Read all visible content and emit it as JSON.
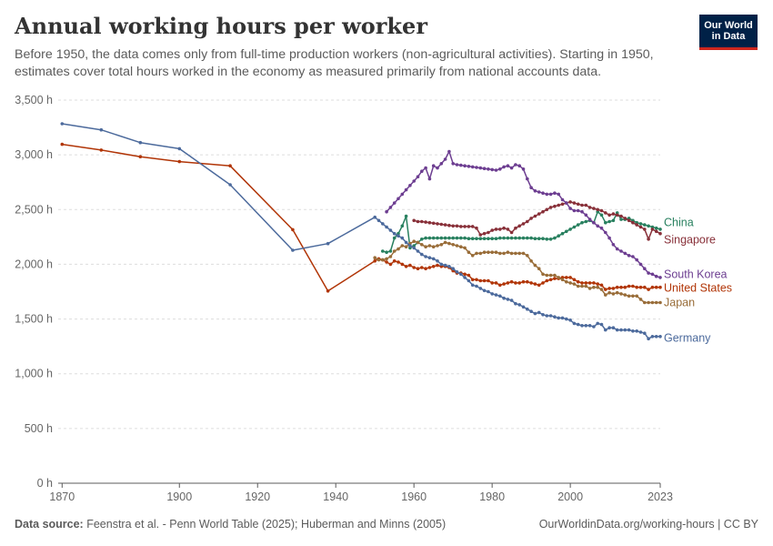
{
  "header": {
    "title": "Annual working hours per worker",
    "subtitle": "Before 1950, the data comes only from full-time production workers (non-agricultural activities). Starting in 1950, estimates cover total hours worked in the economy as measured primarily from national accounts data."
  },
  "logo": {
    "line1": "Our World",
    "line2": "in Data"
  },
  "footer": {
    "source_label": "Data source:",
    "source_text": "Feenstra et al. - Penn World Table (2025); Huberman and Minns (2005)",
    "url_license": "OurWorldinData.org/working-hours | CC BY"
  },
  "colors": {
    "grid": "#dddddd",
    "axis": "#5b5b5b",
    "tick_text": "#666666"
  },
  "chart_data": {
    "type": "line",
    "title": "Annual working hours per worker",
    "xlabel": "",
    "ylabel": "",
    "xlim": [
      1869,
      2023
    ],
    "ylim": [
      0,
      3500
    ],
    "x_ticks": [
      1870,
      1900,
      1920,
      1940,
      1960,
      1980,
      2000,
      2023
    ],
    "y_ticks": [
      0,
      500,
      1000,
      1500,
      2000,
      2500,
      3000,
      3500
    ],
    "y_tick_labels": [
      "0 h",
      "500 h",
      "1,000 h",
      "1,500 h",
      "2,000 h",
      "2,500 h",
      "3,000 h",
      "3,500 h"
    ],
    "grid": "horizontal dashed",
    "legend": "labels at right end of lines",
    "series": [
      {
        "name": "China",
        "color": "#28805f",
        "x": [
          1952,
          1953,
          1954,
          1955,
          1956,
          1957,
          1958,
          1959,
          1960,
          1961,
          1962,
          1963,
          1964,
          1965,
          1966,
          1967,
          1968,
          1969,
          1970,
          1971,
          1972,
          1973,
          1974,
          1975,
          1976,
          1977,
          1978,
          1979,
          1980,
          1981,
          1982,
          1983,
          1984,
          1985,
          1986,
          1987,
          1988,
          1989,
          1990,
          1991,
          1992,
          1993,
          1994,
          1995,
          1996,
          1997,
          1998,
          1999,
          2000,
          2001,
          2002,
          2003,
          2004,
          2005,
          2006,
          2007,
          2008,
          2009,
          2010,
          2011,
          2012,
          2013,
          2014,
          2015,
          2016,
          2017,
          2018,
          2019,
          2020,
          2021,
          2022,
          2023
        ],
        "y": [
          2120,
          2110,
          2120,
          2240,
          2280,
          2350,
          2440,
          2150,
          2170,
          2200,
          2230,
          2240,
          2240,
          2240,
          2240,
          2240,
          2240,
          2240,
          2240,
          2240,
          2240,
          2240,
          2235,
          2235,
          2235,
          2235,
          2235,
          2235,
          2235,
          2235,
          2240,
          2240,
          2240,
          2240,
          2240,
          2240,
          2240,
          2240,
          2240,
          2235,
          2235,
          2235,
          2230,
          2230,
          2240,
          2260,
          2280,
          2300,
          2320,
          2340,
          2360,
          2380,
          2390,
          2400,
          2380,
          2480,
          2450,
          2380,
          2390,
          2400,
          2470,
          2410,
          2410,
          2420,
          2400,
          2380,
          2370,
          2360,
          2350,
          2340,
          2330,
          2320
        ]
      },
      {
        "name": "Singapore",
        "color": "#883039",
        "x": [
          1960,
          1961,
          1962,
          1963,
          1964,
          1965,
          1966,
          1967,
          1968,
          1969,
          1970,
          1971,
          1972,
          1973,
          1974,
          1975,
          1976,
          1977,
          1978,
          1979,
          1980,
          1981,
          1982,
          1983,
          1984,
          1985,
          1986,
          1987,
          1988,
          1989,
          1990,
          1991,
          1992,
          1993,
          1994,
          1995,
          1996,
          1997,
          1998,
          1999,
          2000,
          2001,
          2002,
          2003,
          2004,
          2005,
          2006,
          2007,
          2008,
          2009,
          2010,
          2011,
          2012,
          2013,
          2014,
          2015,
          2016,
          2017,
          2018,
          2019,
          2020,
          2021,
          2022,
          2023
        ],
        "y": [
          2400,
          2390,
          2390,
          2385,
          2380,
          2375,
          2370,
          2365,
          2360,
          2355,
          2350,
          2350,
          2345,
          2345,
          2345,
          2345,
          2330,
          2270,
          2280,
          2290,
          2310,
          2320,
          2320,
          2330,
          2320,
          2290,
          2330,
          2350,
          2370,
          2390,
          2420,
          2440,
          2460,
          2480,
          2500,
          2520,
          2530,
          2540,
          2550,
          2560,
          2570,
          2560,
          2550,
          2540,
          2540,
          2520,
          2510,
          2500,
          2490,
          2470,
          2450,
          2460,
          2450,
          2440,
          2420,
          2400,
          2380,
          2360,
          2340,
          2320,
          2230,
          2320,
          2300,
          2280
        ]
      },
      {
        "name": "South Korea",
        "color": "#6d3e91",
        "x": [
          1953,
          1954,
          1955,
          1956,
          1957,
          1958,
          1959,
          1960,
          1961,
          1962,
          1963,
          1964,
          1965,
          1966,
          1967,
          1968,
          1969,
          1970,
          1971,
          1972,
          1973,
          1974,
          1975,
          1976,
          1977,
          1978,
          1979,
          1980,
          1981,
          1982,
          1983,
          1984,
          1985,
          1986,
          1987,
          1988,
          1989,
          1990,
          1991,
          1992,
          1993,
          1994,
          1995,
          1996,
          1997,
          1998,
          1999,
          2000,
          2001,
          2002,
          2003,
          2004,
          2005,
          2006,
          2007,
          2008,
          2009,
          2010,
          2011,
          2012,
          2013,
          2014,
          2015,
          2016,
          2017,
          2018,
          2019,
          2020,
          2021,
          2022,
          2023
        ],
        "y": [
          2480,
          2520,
          2560,
          2600,
          2640,
          2680,
          2720,
          2760,
          2800,
          2850,
          2880,
          2780,
          2900,
          2880,
          2920,
          2960,
          3030,
          2920,
          2910,
          2905,
          2900,
          2895,
          2890,
          2885,
          2880,
          2875,
          2870,
          2865,
          2860,
          2870,
          2890,
          2900,
          2880,
          2910,
          2900,
          2870,
          2780,
          2700,
          2670,
          2660,
          2650,
          2640,
          2640,
          2650,
          2640,
          2590,
          2560,
          2510,
          2490,
          2490,
          2480,
          2450,
          2410,
          2380,
          2350,
          2330,
          2290,
          2240,
          2180,
          2140,
          2120,
          2100,
          2080,
          2070,
          2040,
          2000,
          1960,
          1920,
          1910,
          1890,
          1880
        ]
      },
      {
        "name": "United States",
        "color": "#b13507",
        "x": [
          1870,
          1880,
          1890,
          1900,
          1913,
          1929,
          1938,
          1950,
          1951,
          1952,
          1953,
          1954,
          1955,
          1956,
          1957,
          1958,
          1959,
          1960,
          1961,
          1962,
          1963,
          1964,
          1965,
          1966,
          1967,
          1968,
          1969,
          1970,
          1971,
          1972,
          1973,
          1974,
          1975,
          1976,
          1977,
          1978,
          1979,
          1980,
          1981,
          1982,
          1983,
          1984,
          1985,
          1986,
          1987,
          1988,
          1989,
          1990,
          1991,
          1992,
          1993,
          1994,
          1995,
          1996,
          1997,
          1998,
          1999,
          2000,
          2001,
          2002,
          2003,
          2004,
          2005,
          2006,
          2007,
          2008,
          2009,
          2010,
          2011,
          2012,
          2013,
          2014,
          2015,
          2016,
          2017,
          2018,
          2019,
          2020,
          2021,
          2022,
          2023
        ],
        "y": [
          3096,
          3044,
          2983,
          2938,
          2900,
          2316,
          1756,
          2030,
          2050,
          2040,
          2020,
          2000,
          2030,
          2020,
          2000,
          1980,
          1990,
          1970,
          1960,
          1970,
          1960,
          1970,
          1980,
          1990,
          1980,
          1980,
          1970,
          1940,
          1920,
          1920,
          1910,
          1900,
          1860,
          1860,
          1850,
          1850,
          1850,
          1830,
          1830,
          1810,
          1820,
          1830,
          1840,
          1830,
          1830,
          1840,
          1840,
          1830,
          1820,
          1810,
          1830,
          1850,
          1860,
          1870,
          1870,
          1880,
          1880,
          1880,
          1860,
          1840,
          1830,
          1830,
          1830,
          1830,
          1820,
          1810,
          1770,
          1780,
          1780,
          1790,
          1790,
          1790,
          1800,
          1800,
          1790,
          1790,
          1790,
          1770,
          1790,
          1790,
          1790
        ]
      },
      {
        "name": "Japan",
        "color": "#996d39",
        "x": [
          1950,
          1951,
          1952,
          1953,
          1954,
          1955,
          1956,
          1957,
          1958,
          1959,
          1960,
          1961,
          1962,
          1963,
          1964,
          1965,
          1966,
          1967,
          1968,
          1969,
          1970,
          1971,
          1972,
          1973,
          1974,
          1975,
          1976,
          1977,
          1978,
          1979,
          1980,
          1981,
          1982,
          1983,
          1984,
          1985,
          1986,
          1987,
          1988,
          1989,
          1990,
          1991,
          1992,
          1993,
          1994,
          1995,
          1996,
          1997,
          1998,
          1999,
          2000,
          2001,
          2002,
          2003,
          2004,
          2005,
          2006,
          2007,
          2008,
          2009,
          2010,
          2011,
          2012,
          2013,
          2014,
          2015,
          2016,
          2017,
          2018,
          2019,
          2020,
          2021,
          2022,
          2023
        ],
        "y": [
          2060,
          2040,
          2040,
          2050,
          2070,
          2120,
          2140,
          2170,
          2160,
          2190,
          2210,
          2200,
          2180,
          2160,
          2170,
          2160,
          2170,
          2180,
          2200,
          2190,
          2180,
          2170,
          2160,
          2150,
          2110,
          2080,
          2100,
          2100,
          2110,
          2110,
          2110,
          2110,
          2100,
          2100,
          2110,
          2100,
          2100,
          2100,
          2100,
          2080,
          2030,
          1990,
          1960,
          1910,
          1900,
          1900,
          1900,
          1880,
          1860,
          1840,
          1830,
          1820,
          1800,
          1800,
          1800,
          1780,
          1790,
          1790,
          1770,
          1720,
          1740,
          1730,
          1740,
          1730,
          1720,
          1710,
          1710,
          1710,
          1680,
          1650,
          1650,
          1650,
          1650,
          1650
        ]
      },
      {
        "name": "Germany",
        "color": "#4c6a9c",
        "x": [
          1870,
          1880,
          1890,
          1900,
          1913,
          1929,
          1938,
          1950,
          1951,
          1952,
          1953,
          1954,
          1955,
          1956,
          1957,
          1958,
          1959,
          1960,
          1961,
          1962,
          1963,
          1964,
          1965,
          1966,
          1967,
          1968,
          1969,
          1970,
          1971,
          1972,
          1973,
          1974,
          1975,
          1976,
          1977,
          1978,
          1979,
          1980,
          1981,
          1982,
          1983,
          1984,
          1985,
          1986,
          1987,
          1988,
          1989,
          1990,
          1991,
          1992,
          1993,
          1994,
          1995,
          1996,
          1997,
          1998,
          1999,
          2000,
          2001,
          2002,
          2003,
          2004,
          2005,
          2006,
          2007,
          2008,
          2009,
          2010,
          2011,
          2012,
          2013,
          2014,
          2015,
          2016,
          2017,
          2018,
          2019,
          2020,
          2021,
          2022,
          2023
        ],
        "y": [
          3284,
          3228,
          3112,
          3056,
          2727,
          2128,
          2189,
          2430,
          2400,
          2370,
          2340,
          2310,
          2280,
          2260,
          2240,
          2200,
          2170,
          2150,
          2120,
          2090,
          2070,
          2060,
          2050,
          2030,
          2000,
          1990,
          1980,
          1960,
          1930,
          1910,
          1880,
          1850,
          1810,
          1800,
          1780,
          1760,
          1750,
          1730,
          1720,
          1710,
          1690,
          1680,
          1670,
          1640,
          1630,
          1610,
          1590,
          1570,
          1550,
          1560,
          1540,
          1530,
          1530,
          1520,
          1510,
          1510,
          1500,
          1490,
          1460,
          1450,
          1440,
          1440,
          1440,
          1430,
          1460,
          1450,
          1400,
          1420,
          1420,
          1400,
          1400,
          1400,
          1400,
          1390,
          1390,
          1380,
          1370,
          1320,
          1340,
          1340,
          1340
        ]
      }
    ]
  }
}
